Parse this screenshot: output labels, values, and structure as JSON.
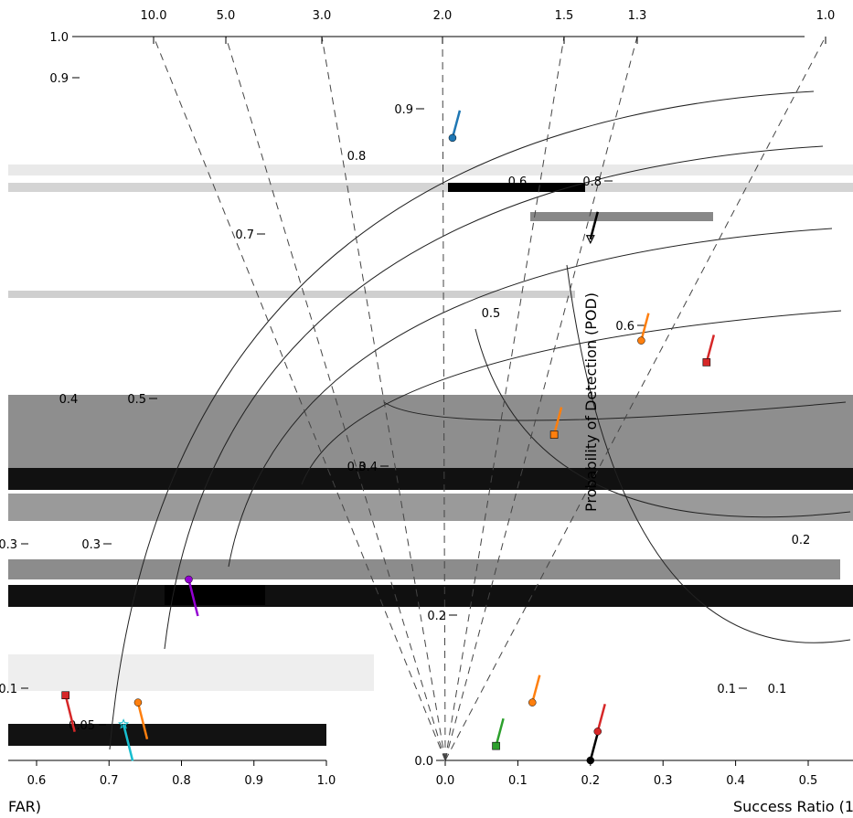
{
  "chart_data": [
    {
      "type": "scatter",
      "xlabel": "FAR)",
      "ylabel": "",
      "xlim": [
        0.55,
        1.0
      ],
      "ylim": [
        0.0,
        1.0
      ],
      "x_ticks": [
        "0.6",
        "0.7",
        "0.8",
        "0.9",
        "1.0"
      ],
      "y_ticks": [
        "1.0",
        "0.9",
        "0.8",
        "0.7",
        "0.6",
        "0.5",
        "0.4",
        "0.3",
        "0.2",
        "0.1",
        "0.05"
      ],
      "points": [
        {
          "x": 0.64,
          "y": 0.09,
          "marker": "square",
          "color": "#d62728"
        },
        {
          "x": 0.72,
          "y": 0.05,
          "marker": "star",
          "color": "#17becf"
        },
        {
          "x": 0.74,
          "y": 0.08,
          "marker": "circle",
          "color": "#ff7f0e"
        },
        {
          "x": 0.81,
          "y": 0.25,
          "marker": "circle",
          "color": "#9400d3"
        }
      ]
    },
    {
      "type": "scatter",
      "title": "",
      "xlabel": "Success Ratio (1-",
      "ylabel": "Probability of Detection (POD)",
      "xlim": [
        0.0,
        0.55
      ],
      "ylim": [
        0.0,
        1.0
      ],
      "x_ticks": [
        "0.0",
        "0.1",
        "0.2",
        "0.3",
        "0.4",
        "0.5"
      ],
      "y_ticks": [
        "0.9",
        "0.8",
        "0.7",
        "0.6",
        "0.5",
        "0.4",
        "0.3",
        "0.2",
        "0.1",
        "0.0"
      ],
      "bias_labels": [
        "10.0",
        "5.0",
        "3.0",
        "2.0",
        "1.5",
        "1.3",
        "1.0"
      ],
      "csi_labels": [
        "0.8",
        "0.6",
        "0.5",
        "0.4",
        "0.3",
        "0.2",
        "0.1"
      ],
      "points": [
        {
          "x": 0.2,
          "y": 0.0,
          "marker": "circle",
          "color": "#000000"
        },
        {
          "x": 0.07,
          "y": 0.02,
          "marker": "square",
          "color": "#2ca02c"
        },
        {
          "x": 0.21,
          "y": 0.04,
          "marker": "circle",
          "color": "#d62728"
        },
        {
          "x": 0.12,
          "y": 0.08,
          "marker": "circle",
          "color": "#ff7f0e"
        },
        {
          "x": 0.15,
          "y": 0.45,
          "marker": "square",
          "color": "#ff7f0e"
        },
        {
          "x": 0.01,
          "y": 0.86,
          "marker": "circle",
          "color": "#1f77b4"
        },
        {
          "x": 0.2,
          "y": 0.72,
          "marker": "triangle",
          "color": "#000000"
        },
        {
          "x": 0.27,
          "y": 0.58,
          "marker": "circle",
          "color": "#ff7f0e"
        },
        {
          "x": 0.36,
          "y": 0.55,
          "marker": "square",
          "color": "#d62728"
        }
      ]
    }
  ]
}
